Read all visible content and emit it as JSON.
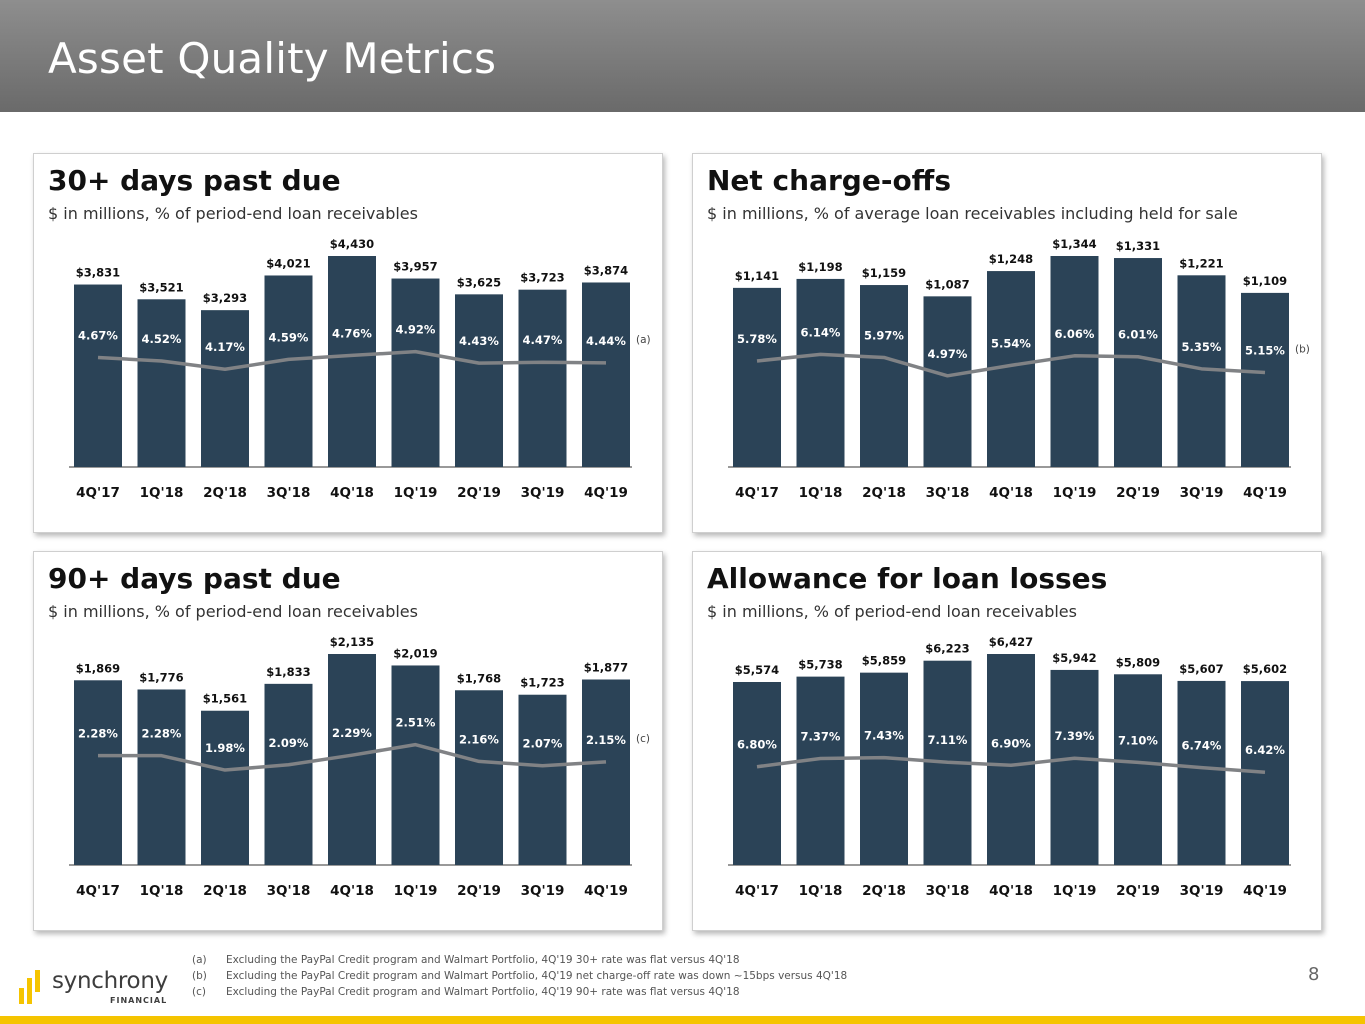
{
  "page": {
    "title": "Asset Quality Metrics",
    "page_number": "8",
    "brand_color": "#2b4357",
    "accent_color": "#f5c400",
    "line_color": "#808285"
  },
  "logo": {
    "name": "synchrony",
    "sub": "FINANCIAL"
  },
  "footnotes": [
    {
      "tag": "(a)",
      "text": "Excluding the PayPal Credit program and Walmart Portfolio, 4Q'19 30+ rate was flat versus 4Q'18"
    },
    {
      "tag": "(b)",
      "text": "Excluding the PayPal Credit program and Walmart Portfolio, 4Q'19 net charge-off rate was down ~15bps versus 4Q'18"
    },
    {
      "tag": "(c)",
      "text": "Excluding the PayPal Credit program and Walmart Portfolio, 4Q'19 90+ rate was flat versus 4Q'18"
    }
  ],
  "chart_data": [
    {
      "type": "bar",
      "title": "30+ days past due",
      "subtitle": "$ in millions, % of period-end loan receivables",
      "categories": [
        "4Q'17",
        "1Q'18",
        "2Q'18",
        "3Q'18",
        "4Q'18",
        "1Q'19",
        "2Q'19",
        "3Q'19",
        "4Q'19"
      ],
      "values": [
        3831,
        3521,
        3293,
        4021,
        4430,
        3957,
        3625,
        3723,
        3874
      ],
      "value_labels": [
        "$3,831",
        "$3,521",
        "$3,293",
        "$4,021",
        "$4,430",
        "$3,957",
        "$3,625",
        "$3,723",
        "$3,874"
      ],
      "rates": [
        4.67,
        4.52,
        4.17,
        4.59,
        4.76,
        4.92,
        4.43,
        4.47,
        4.44
      ],
      "rate_labels": [
        "4.67%",
        "4.52%",
        "4.17%",
        "4.59%",
        "4.76%",
        "4.92%",
        "4.43%",
        "4.47%",
        "4.44%"
      ],
      "note": "(a)",
      "ylim": [
        0,
        4430
      ],
      "rate_ylim": [
        0,
        9
      ]
    },
    {
      "type": "bar",
      "title": "Net charge-offs",
      "subtitle": "$ in millions, % of average loan receivables including held for sale",
      "categories": [
        "4Q'17",
        "1Q'18",
        "2Q'18",
        "3Q'18",
        "4Q'18",
        "1Q'19",
        "2Q'19",
        "3Q'19",
        "4Q'19"
      ],
      "values": [
        1141,
        1198,
        1159,
        1087,
        1248,
        1344,
        1331,
        1221,
        1109
      ],
      "value_labels": [
        "$1,141",
        "$1,198",
        "$1,159",
        "$1,087",
        "$1,248",
        "$1,344",
        "$1,331",
        "$1,221",
        "$1,109"
      ],
      "rates": [
        5.78,
        6.14,
        5.97,
        4.97,
        5.54,
        6.06,
        6.01,
        5.35,
        5.15
      ],
      "rate_labels": [
        "5.78%",
        "6.14%",
        "5.97%",
        "4.97%",
        "5.54%",
        "6.06%",
        "6.01%",
        "5.35%",
        "5.15%"
      ],
      "note": "(b)",
      "ylim": [
        0,
        1344
      ],
      "rate_ylim": [
        0,
        11.5
      ]
    },
    {
      "type": "bar",
      "title": "90+ days past due",
      "subtitle": "$ in millions, % of period-end loan receivables",
      "categories": [
        "4Q'17",
        "1Q'18",
        "2Q'18",
        "3Q'18",
        "4Q'18",
        "1Q'19",
        "2Q'19",
        "3Q'19",
        "4Q'19"
      ],
      "values": [
        1869,
        1776,
        1561,
        1833,
        2135,
        2019,
        1768,
        1723,
        1877
      ],
      "value_labels": [
        "$1,869",
        "$1,776",
        "$1,561",
        "$1,833",
        "$2,135",
        "$2,019",
        "$1,768",
        "$1,723",
        "$1,877"
      ],
      "rates": [
        2.28,
        2.28,
        1.98,
        2.09,
        2.29,
        2.51,
        2.16,
        2.07,
        2.15
      ],
      "rate_labels": [
        "2.28%",
        "2.28%",
        "1.98%",
        "2.09%",
        "2.29%",
        "2.51%",
        "2.16%",
        "2.07%",
        "2.15%"
      ],
      "note": "(c)",
      "ylim": [
        0,
        2135
      ],
      "rate_ylim": [
        0,
        4.4
      ]
    },
    {
      "type": "bar",
      "title": "Allowance for loan losses",
      "subtitle": "$ in millions, % of period-end loan receivables",
      "categories": [
        "4Q'17",
        "1Q'18",
        "2Q'18",
        "3Q'18",
        "4Q'18",
        "1Q'19",
        "2Q'19",
        "3Q'19",
        "4Q'19"
      ],
      "values": [
        5574,
        5738,
        5859,
        6223,
        6427,
        5942,
        5809,
        5607,
        5602
      ],
      "value_labels": [
        "$5,574",
        "$5,738",
        "$5,859",
        "$6,223",
        "$6,427",
        "$5,942",
        "$5,809",
        "$5,607",
        "$5,602"
      ],
      "rates": [
        6.8,
        7.37,
        7.43,
        7.11,
        6.9,
        7.39,
        7.1,
        6.74,
        6.42
      ],
      "rate_labels": [
        "6.80%",
        "7.37%",
        "7.43%",
        "7.11%",
        "6.90%",
        "7.39%",
        "7.10%",
        "6.74%",
        "6.42%"
      ],
      "note": "",
      "ylim": [
        0,
        6427
      ],
      "rate_ylim": [
        0,
        14.6
      ]
    }
  ]
}
